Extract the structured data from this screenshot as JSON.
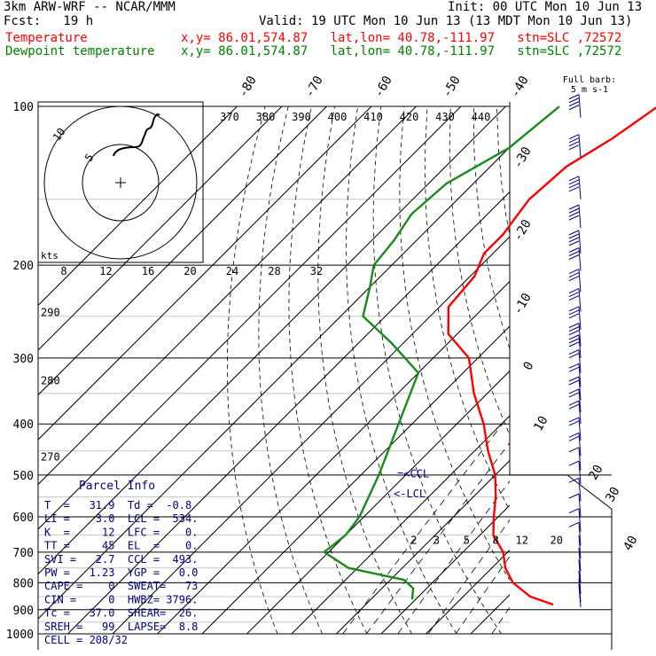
{
  "header": {
    "model": "3km ARW-WRF -- NCAR/MMM",
    "init": "Init: 00 UTC Mon 10 Jun 13",
    "fcst": "Fcst:   19 h",
    "valid": "Valid: 19 UTC Mon 10 Jun 13 (13 MDT Mon 10 Jun 13)",
    "lines": [
      {
        "name": "Temperature",
        "info": "x,y= 86.01,574.87   lat,lon= 40.78,-111.97   stn=SLC ,72572",
        "color": "#ff0000"
      },
      {
        "name": "Dewpoint temperature",
        "info": "x,y= 86.01,574.87   lat,lon= 40.78,-111.97   stn=SLC ,72572",
        "color": "#008000"
      }
    ]
  },
  "colors": {
    "temperature": "#ff0000",
    "dewpoint": "#1a8a1a",
    "wind": "#000080",
    "parcel_text": "#000080",
    "grid": "#000000"
  },
  "chart_data": {
    "type": "line",
    "pressure_labels": [
      "100",
      "200",
      "300",
      "400",
      "500",
      "600",
      "700",
      "800",
      "900",
      "1000"
    ],
    "isotherm_labels": [
      "-80",
      "-70",
      "-60",
      "-50",
      "-40",
      "-30",
      "-20",
      "-10",
      "0",
      "10",
      "20",
      "30",
      "40"
    ],
    "theta_labels": [
      "370",
      "380",
      "390",
      "400",
      "410",
      "420",
      "430",
      "440"
    ],
    "left_theta_labels": [
      "290",
      "280",
      "270"
    ],
    "mixing_ratio_labels": [
      "2",
      "3",
      "5",
      "8",
      "12",
      "20"
    ],
    "hodograph": {
      "speed_unit": "kts",
      "ring_labels": [
        "5",
        "10"
      ],
      "axis_labels": [
        "8",
        "12",
        "16",
        "20",
        "24",
        "28",
        "32"
      ]
    },
    "windbarb_title": "Full barb:",
    "windbarb_unit": "5 m s-1",
    "lcl_label": "<-LCL",
    "ccl_label": "=<CCL",
    "series": [
      {
        "name": "Temperature",
        "color": "#ff0000",
        "points": [
          [
            100,
            -56
          ],
          [
            115,
            -59
          ],
          [
            130,
            -63
          ],
          [
            150,
            -64
          ],
          [
            175,
            -62
          ],
          [
            190,
            -62
          ],
          [
            210,
            -59
          ],
          [
            240,
            -58
          ],
          [
            270,
            -52
          ],
          [
            300,
            -42
          ],
          [
            350,
            -33
          ],
          [
            400,
            -24
          ],
          [
            450,
            -17
          ],
          [
            500,
            -10
          ],
          [
            550,
            -5
          ],
          [
            600,
            -1
          ],
          [
            650,
            3
          ],
          [
            700,
            9
          ],
          [
            750,
            13
          ],
          [
            800,
            18
          ],
          [
            850,
            25
          ],
          [
            880,
            31.9
          ]
        ]
      },
      {
        "name": "Dewpoint temperature",
        "color": "#1a8a1a",
        "points": [
          [
            100,
            -78
          ],
          [
            120,
            -80
          ],
          [
            140,
            -86
          ],
          [
            160,
            -87
          ],
          [
            180,
            -85
          ],
          [
            200,
            -84
          ],
          [
            220,
            -80
          ],
          [
            250,
            -75
          ],
          [
            280,
            -63
          ],
          [
            320,
            -50
          ],
          [
            400,
            -43
          ],
          [
            500,
            -36
          ],
          [
            600,
            -31
          ],
          [
            650,
            -30
          ],
          [
            700,
            -31
          ],
          [
            750,
            -22
          ],
          [
            790,
            -7
          ],
          [
            820,
            -3
          ],
          [
            860,
            -0.8
          ]
        ]
      }
    ],
    "wind_profile": [
      [
        105,
        25
      ],
      [
        125,
        24
      ],
      [
        150,
        23
      ],
      [
        170,
        22
      ],
      [
        190,
        20
      ],
      [
        205,
        19
      ],
      [
        225,
        18
      ],
      [
        245,
        17
      ],
      [
        265,
        16
      ],
      [
        285,
        15
      ],
      [
        300,
        15
      ],
      [
        320,
        14
      ],
      [
        340,
        14
      ],
      [
        360,
        13
      ],
      [
        380,
        12
      ],
      [
        400,
        12
      ],
      [
        430,
        11
      ],
      [
        460,
        10
      ],
      [
        490,
        9
      ],
      [
        520,
        8
      ],
      [
        560,
        7
      ],
      [
        600,
        6
      ],
      [
        640,
        5
      ],
      [
        680,
        5
      ],
      [
        720,
        4
      ],
      [
        760,
        4
      ],
      [
        800,
        3
      ],
      [
        840,
        3
      ],
      [
        870,
        2
      ],
      [
        890,
        2
      ]
    ]
  },
  "parcel_info": {
    "title": "Parcel Info",
    "rows": [
      "T  =   31.9  Td =  -0.8",
      "LI =    3.0  LCL =  534.",
      "K  =     12  LFC =    0.",
      "TT =     45  EL  =    0.",
      "SVI =   2.7  CCL =  493.",
      "PW =   1.23  YGP =   0.0",
      "CAPE =    0  SWEAT=   73",
      "CIN =     0  HWBZ= 3796.",
      "Tc =   37.0  SHEAR=  26.",
      "SREH =   99  LAPSE=  8.8",
      "CELL = 208/32"
    ]
  }
}
